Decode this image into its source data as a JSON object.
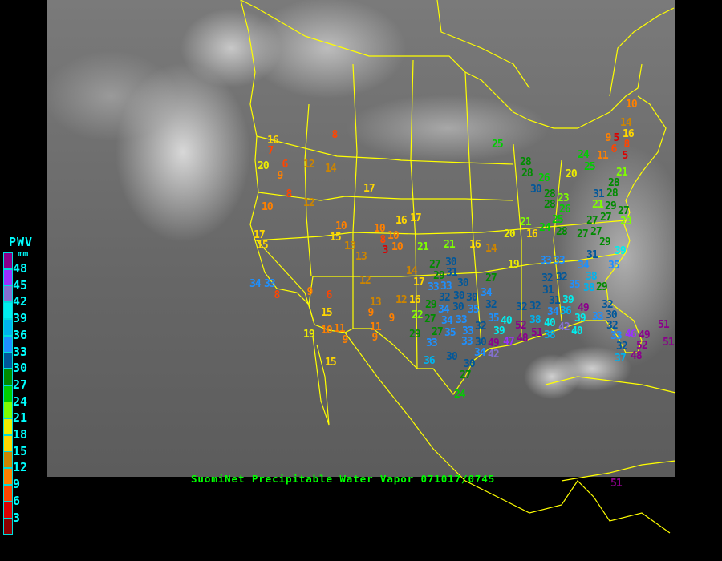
{
  "title": "SuomiNet Precipitable Water Vapor 071017/0745",
  "legend": {
    "title": "PWV",
    "unit": "mm",
    "labels": [
      "48",
      "45",
      "42",
      "39",
      "36",
      "33",
      "30",
      "27",
      "24",
      "21",
      "18",
      "15",
      "12",
      "9",
      "6",
      "3"
    ],
    "colors": [
      "#8b008b",
      "#9b30ff",
      "#8470d0",
      "#00eeee",
      "#00b2ee",
      "#1e90ff",
      "#00579a",
      "#008b00",
      "#00cd00",
      "#7fff00",
      "#eeee00",
      "#ffd700",
      "#cd8500",
      "#ff8000",
      "#ff4500",
      "#dd0000",
      "#8b0000"
    ]
  },
  "stations": [
    "8",
    "16",
    "7",
    "20",
    "6",
    "9",
    "12",
    "14",
    "17",
    "8",
    "12",
    "10",
    "16",
    "17",
    "17",
    "15",
    "10",
    "10",
    "8",
    "10",
    "15",
    "13",
    "3",
    "10",
    "21",
    "13",
    "14",
    "12",
    "17",
    "34",
    "33",
    "8",
    "9",
    "6",
    "13",
    "12",
    "16",
    "9",
    "9",
    "15",
    "10",
    "11",
    "19",
    "9",
    "11",
    "9",
    "15",
    "21",
    "16",
    "14",
    "27",
    "29",
    "30",
    "31",
    "33",
    "19",
    "27",
    "33",
    "32",
    "31",
    "33",
    "30",
    "30",
    "32",
    "30",
    "34",
    "30",
    "34",
    "34",
    "35",
    "32",
    "29",
    "22",
    "27",
    "27",
    "33",
    "33",
    "32",
    "29",
    "33",
    "35",
    "33",
    "30",
    "35",
    "40",
    "32",
    "38",
    "40",
    "39",
    "42",
    "34",
    "49",
    "47",
    "48",
    "52",
    "51",
    "36",
    "30",
    "30",
    "27",
    "24",
    "10",
    "14",
    "16",
    "9",
    "5",
    "8",
    "6",
    "11",
    "5",
    "25",
    "24",
    "25",
    "28",
    "28",
    "20",
    "26",
    "30",
    "21",
    "28",
    "28",
    "31",
    "28",
    "23",
    "28",
    "26",
    "21",
    "29",
    "25",
    "27",
    "27",
    "23",
    "24",
    "28",
    "27",
    "27",
    "27",
    "21",
    "20",
    "16",
    "29",
    "39",
    "31",
    "33",
    "34",
    "35",
    "38",
    "32",
    "35",
    "38",
    "29",
    "31",
    "39",
    "36",
    "34",
    "32",
    "32",
    "38",
    "42",
    "39",
    "40",
    "49",
    "33",
    "30",
    "32",
    "33",
    "46",
    "49",
    "52",
    "32",
    "37",
    "51",
    "51",
    "48",
    "51"
  ]
}
